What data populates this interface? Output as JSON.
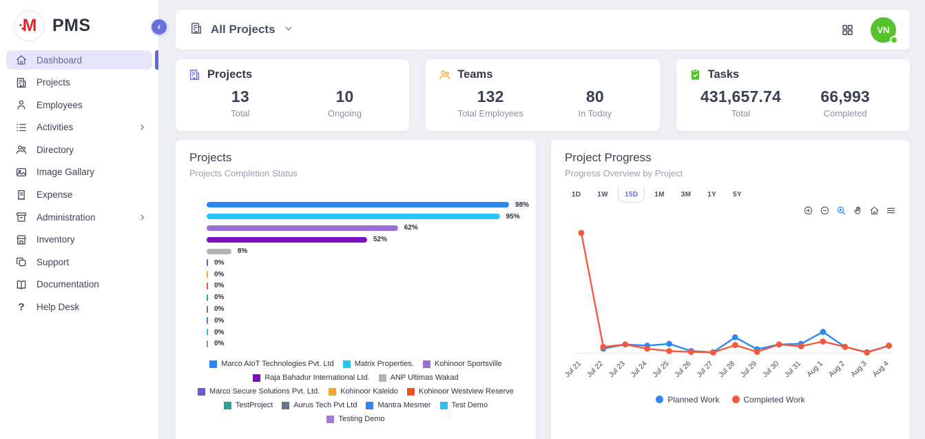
{
  "brand": {
    "name": "PMS",
    "logo_letter": "M"
  },
  "sidebar": {
    "items": [
      {
        "label": "Dashboard",
        "icon": "home-icon",
        "active": true,
        "has_children": false
      },
      {
        "label": "Projects",
        "icon": "building-icon",
        "active": false,
        "has_children": false
      },
      {
        "label": "Employees",
        "icon": "person-icon",
        "active": false,
        "has_children": false
      },
      {
        "label": "Activities",
        "icon": "list-icon",
        "active": false,
        "has_children": true
      },
      {
        "label": "Directory",
        "icon": "users-icon",
        "active": false,
        "has_children": false
      },
      {
        "label": "Image Gallary",
        "icon": "image-icon",
        "active": false,
        "has_children": false
      },
      {
        "label": "Expense",
        "icon": "receipt-icon",
        "active": false,
        "has_children": false
      },
      {
        "label": "Administration",
        "icon": "archive-icon",
        "active": false,
        "has_children": true
      },
      {
        "label": "Inventory",
        "icon": "store-icon",
        "active": false,
        "has_children": false
      },
      {
        "label": "Support",
        "icon": "copy-icon",
        "active": false,
        "has_children": false
      },
      {
        "label": "Documentation",
        "icon": "book-icon",
        "active": false,
        "has_children": false
      },
      {
        "label": "Help Desk",
        "icon": "question-icon",
        "active": false,
        "has_children": false
      }
    ]
  },
  "topbar": {
    "filter_label": "All Projects"
  },
  "user": {
    "initials": "VN",
    "color": "#56c22d"
  },
  "stat_cards": [
    {
      "title": "Projects",
      "icon": "building-icon",
      "color": "#6467f2",
      "metrics": [
        {
          "value": "13",
          "label": "Total"
        },
        {
          "value": "10",
          "label": "Ongoing"
        }
      ]
    },
    {
      "title": "Teams",
      "icon": "users-icon",
      "color": "#f5a623",
      "metrics": [
        {
          "value": "132",
          "label": "Total Employees"
        },
        {
          "value": "80",
          "label": "In Today"
        }
      ]
    },
    {
      "title": "Tasks",
      "icon": "clipboard-check-icon",
      "color": "#4fc32b",
      "metrics": [
        {
          "value": "431,657.74",
          "label": "Total"
        },
        {
          "value": "66,993",
          "label": "Completed"
        }
      ]
    }
  ],
  "projects_card": {
    "title": "Projects",
    "subtitle": "Projects Completion Status",
    "chart_data": {
      "type": "bar",
      "orientation": "horizontal",
      "unit": "%",
      "xlim": [
        0,
        100
      ],
      "categories": [
        "Marco AIoT Technologies Pvt. Ltd",
        "Matrix Properties.",
        "Kohinoor Sportsville",
        "Raja Bahadur International Ltd.",
        "ANP Ultimas Wakad",
        "Marco Secure Solutions Pvt. Ltd.",
        "Kohinoor Kaleido",
        "Kohinoor Westview Reserve",
        "TestProject",
        "Aurus Tech Pvt Ltd",
        "Mantra Mesmer",
        "Test Demo",
        "Testing Demo"
      ],
      "values": [
        98,
        95,
        62,
        52,
        8,
        0,
        0,
        0,
        0,
        0,
        0,
        0,
        0
      ],
      "colors": [
        "#2d86f0",
        "#29c5f6",
        "#9b6dd6",
        "#7c0fc0",
        "#b3b3b3",
        "#6a5ad0",
        "#ffa621",
        "#f4511e",
        "#26a69a",
        "#64748b",
        "#2d86f0",
        "#24c2f5",
        "#a179e2"
      ]
    }
  },
  "progress_card": {
    "title": "Project Progress",
    "subtitle": "Progress Overview by Project",
    "ranges": [
      "1D",
      "1W",
      "15D",
      "1M",
      "3M",
      "1Y",
      "5Y"
    ],
    "selected_range": "15D",
    "toolbar": [
      "zoom-in-icon",
      "zoom-out-icon",
      "zoom-select-icon",
      "pan-icon",
      "home-icon",
      "menu-icon"
    ],
    "toolbar_active": "zoom-select-icon",
    "chart_data": {
      "type": "line",
      "x": [
        "Jul 21",
        "Jul 22",
        "Jul 23",
        "Jul 24",
        "Jul 25",
        "Jul 26",
        "Jul 27",
        "Jul 28",
        "Jul 29",
        "Jul 30",
        "Jul 31",
        "Aug 1",
        "Aug 2",
        "Aug 3",
        "Aug 4"
      ],
      "series": [
        {
          "name": "Planned Work",
          "color": "#2d88f3",
          "values": [
            null,
            3.5,
            7,
            6,
            7.5,
            1.5,
            0.5,
            13,
            3,
            7,
            7.5,
            17.5,
            5,
            0.5,
            6
          ]
        },
        {
          "name": "Completed Work",
          "color": "#f4593e",
          "values": [
            100,
            5,
            7,
            3.5,
            1.5,
            0.8,
            0.3,
            6.5,
            0.8,
            7,
            5.5,
            9.5,
            5,
            0.3,
            6
          ]
        }
      ],
      "ylim": [
        0,
        105
      ],
      "grid": false,
      "legend_position": "bottom"
    }
  }
}
